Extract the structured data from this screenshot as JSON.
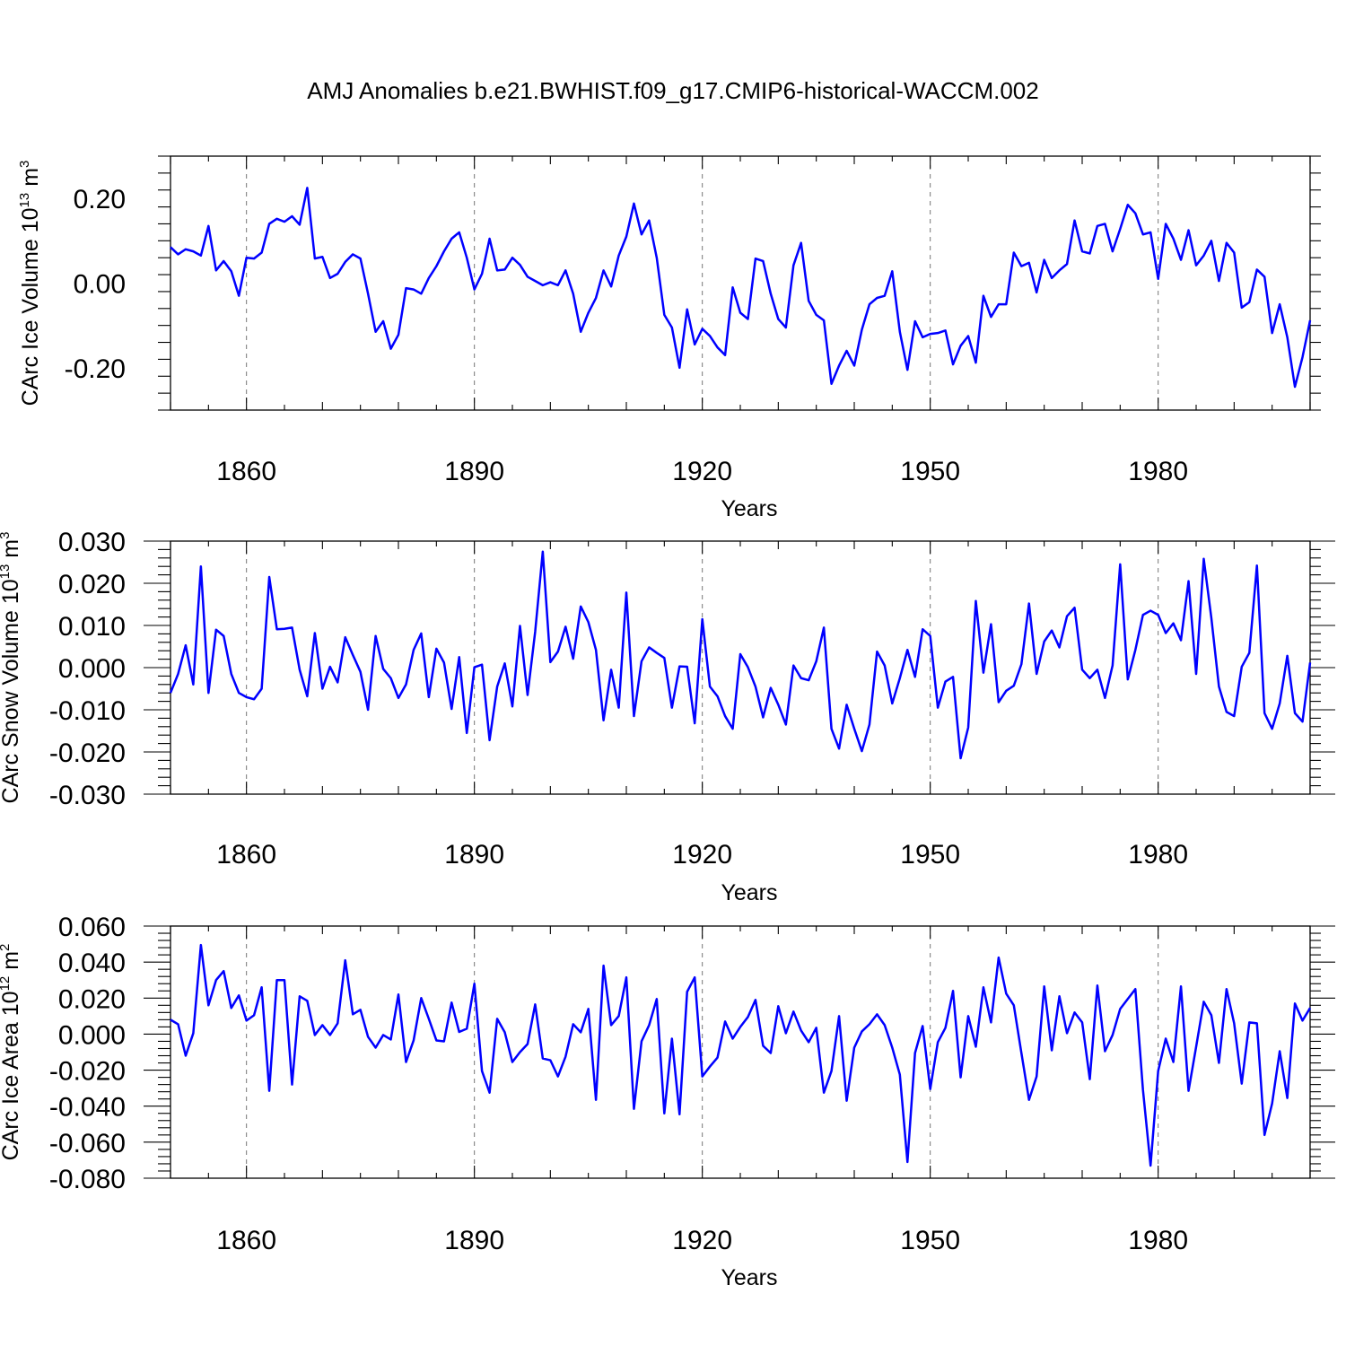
{
  "title": "AMJ Anomalies b.e21.BWHIST.f09_g17.CMIP6-historical-WACCM.002",
  "colors": {
    "line": "#0000ff",
    "axis": "#000000",
    "grid": "#777777"
  },
  "chart_data": [
    {
      "type": "line",
      "ylabel": "CArc Ice Volume 10",
      "ylabel_exp": "13",
      "ylabel_unit": " m",
      "ylabel_unit_exp": "3",
      "xlabel": "Years",
      "xlim": [
        1850,
        2000
      ],
      "ylim": [
        -0.3,
        0.3
      ],
      "xticks": [
        1860,
        1890,
        1920,
        1950,
        1980
      ],
      "xtick_labels": [
        "1860",
        "1890",
        "1920",
        "1950",
        "1980"
      ],
      "yticks": [
        0.2,
        0.0,
        -0.2
      ],
      "ytick_labels": [
        "0.20",
        "0.00",
        "-0.20"
      ],
      "grid": "vertical-dashed",
      "x_start": 1850,
      "values": [
        0.085,
        0.068,
        0.08,
        0.075,
        0.065,
        0.135,
        0.03,
        0.052,
        0.028,
        -0.03,
        0.06,
        0.058,
        0.072,
        0.14,
        0.152,
        0.145,
        0.158,
        0.138,
        0.225,
        0.058,
        0.062,
        0.012,
        0.022,
        0.05,
        0.068,
        0.058,
        -0.025,
        -0.115,
        -0.09,
        -0.155,
        -0.122,
        -0.012,
        -0.015,
        -0.025,
        0.012,
        0.04,
        0.075,
        0.105,
        0.12,
        0.06,
        -0.015,
        0.022,
        0.105,
        0.03,
        0.032,
        0.06,
        0.043,
        0.015,
        0.005,
        -0.005,
        0.002,
        -0.005,
        0.03,
        -0.025,
        -0.115,
        -0.07,
        -0.035,
        0.03,
        -0.008,
        0.065,
        0.11,
        0.188,
        0.115,
        0.148,
        0.06,
        -0.075,
        -0.105,
        -0.2,
        -0.062,
        -0.145,
        -0.108,
        -0.125,
        -0.152,
        -0.17,
        -0.01,
        -0.07,
        -0.085,
        0.058,
        0.052,
        -0.025,
        -0.085,
        -0.105,
        0.042,
        0.095,
        -0.042,
        -0.075,
        -0.088,
        -0.238,
        -0.195,
        -0.16,
        -0.195,
        -0.11,
        -0.05,
        -0.035,
        -0.03,
        0.028,
        -0.115,
        -0.205,
        -0.09,
        -0.128,
        -0.12,
        -0.118,
        -0.112,
        -0.192,
        -0.148,
        -0.125,
        -0.188,
        -0.03,
        -0.08,
        -0.05,
        -0.05,
        0.072,
        0.04,
        0.048,
        -0.022,
        0.055,
        0.012,
        0.03,
        0.045,
        0.148,
        0.075,
        0.07,
        0.135,
        0.14,
        0.075,
        0.128,
        0.185,
        0.165,
        0.115,
        0.12,
        0.01,
        0.14,
        0.105,
        0.055,
        0.125,
        0.042,
        0.065,
        0.1,
        0.005,
        0.095,
        0.072,
        -0.058,
        -0.045,
        0.032,
        0.015,
        -0.118,
        -0.05,
        -0.128,
        -0.245,
        -0.175,
        -0.088
      ]
    },
    {
      "type": "line",
      "ylabel": "CArc Snow Volume 10",
      "ylabel_exp": "13",
      "ylabel_unit": " m",
      "ylabel_unit_exp": "3",
      "xlabel": "Years",
      "xlim": [
        1850,
        2000
      ],
      "ylim": [
        -0.03,
        0.03
      ],
      "xticks": [
        1860,
        1890,
        1920,
        1950,
        1980
      ],
      "xtick_labels": [
        "1860",
        "1890",
        "1920",
        "1950",
        "1980"
      ],
      "yticks": [
        0.03,
        0.02,
        0.01,
        0.0,
        -0.01,
        -0.02,
        -0.03
      ],
      "ytick_labels": [
        "0.030",
        "0.020",
        "0.010",
        "0.000",
        "-0.010",
        "-0.020",
        "-0.030"
      ],
      "grid": "vertical-dashed",
      "x_start": 1850,
      "values": [
        -0.006,
        -0.0015,
        0.0053,
        -0.004,
        0.024,
        -0.006,
        0.009,
        0.0075,
        -0.0015,
        -0.006,
        -0.007,
        -0.0075,
        -0.005,
        0.0215,
        0.0091,
        0.0092,
        0.0095,
        -0.0005,
        -0.0068,
        0.0082,
        -0.005,
        0.0002,
        -0.0035,
        0.0072,
        0.003,
        -0.001,
        -0.01,
        0.0075,
        -0.0003,
        -0.0025,
        -0.0072,
        -0.004,
        0.0042,
        0.0081,
        -0.007,
        0.0045,
        0.0012,
        -0.0098,
        0.0025,
        -0.0155,
        0.0001,
        0.0007,
        -0.0172,
        -0.0045,
        0.001,
        -0.0092,
        0.0099,
        -0.0065,
        0.0085,
        0.0275,
        0.0013,
        0.0038,
        0.0097,
        0.0021,
        0.0145,
        0.0108,
        0.0042,
        -0.0125,
        -0.0005,
        -0.0095,
        0.0178,
        -0.0115,
        0.0015,
        0.0048,
        0.0035,
        0.0023,
        -0.0095,
        0.0003,
        0.0002,
        -0.0132,
        0.0115,
        -0.0045,
        -0.0068,
        -0.0115,
        -0.0145,
        0.0032,
        0.0001,
        -0.0045,
        -0.0118,
        -0.0048,
        -0.0088,
        -0.0135,
        0.0005,
        -0.0025,
        -0.003,
        0.0015,
        0.0095,
        -0.0145,
        -0.0192,
        -0.0088,
        -0.0145,
        -0.0198,
        -0.0135,
        0.0038,
        0.0005,
        -0.0085,
        -0.0025,
        0.0042,
        -0.0022,
        0.0091,
        0.0075,
        -0.0095,
        -0.0033,
        -0.0022,
        -0.0215,
        -0.0142,
        0.0158,
        -0.0012,
        0.0103,
        -0.0082,
        -0.0055,
        -0.0043,
        0.0008,
        0.0152,
        -0.0015,
        0.0062,
        0.0088,
        0.0048,
        0.0122,
        0.0142,
        -0.0005,
        -0.0025,
        -0.0005,
        -0.0072,
        0.0005,
        0.0245,
        -0.0028,
        0.0042,
        0.0125,
        0.0135,
        0.0125,
        0.0082,
        0.0105,
        0.0065,
        0.0205,
        -0.0015,
        0.0258,
        0.0118,
        -0.0045,
        -0.0105,
        -0.0115,
        0.0002,
        0.0035,
        0.0242,
        -0.0108,
        -0.0145,
        -0.0085,
        0.0028,
        -0.0108,
        -0.0128,
        0.0012
      ]
    },
    {
      "type": "line",
      "ylabel": "CArc Ice Area 10",
      "ylabel_exp": "12",
      "ylabel_unit": " m",
      "ylabel_unit_exp": "2",
      "xlabel": "Years",
      "xlim": [
        1850,
        2000
      ],
      "ylim": [
        -0.08,
        0.06
      ],
      "xticks": [
        1860,
        1890,
        1920,
        1950,
        1980
      ],
      "xtick_labels": [
        "1860",
        "1890",
        "1920",
        "1950",
        "1980"
      ],
      "yticks": [
        0.06,
        0.04,
        0.02,
        0.0,
        -0.02,
        -0.04,
        -0.06,
        -0.08
      ],
      "ytick_labels": [
        "0.060",
        "0.040",
        "0.020",
        "0.000",
        "-0.020",
        "-0.040",
        "-0.060",
        "-0.080"
      ],
      "grid": "vertical-dashed",
      "x_start": 1850,
      "values": [
        0.008,
        0.0055,
        -0.012,
        0.0005,
        0.0495,
        0.016,
        0.03,
        0.035,
        0.0145,
        0.0215,
        0.0075,
        0.0105,
        0.026,
        -0.0315,
        0.03,
        0.03,
        -0.028,
        0.021,
        0.0185,
        -0.0005,
        0.005,
        -0.0005,
        0.006,
        0.041,
        0.011,
        0.0135,
        -0.0015,
        -0.0075,
        -0.0005,
        -0.003,
        0.022,
        -0.0155,
        -0.0035,
        0.02,
        0.0085,
        -0.0035,
        -0.004,
        0.0175,
        0.0012,
        0.003,
        0.028,
        -0.0205,
        -0.0325,
        0.0085,
        0.001,
        -0.0155,
        -0.01,
        -0.0055,
        0.0165,
        -0.0135,
        -0.0145,
        -0.0235,
        -0.0125,
        0.0055,
        0.001,
        0.014,
        -0.0365,
        0.038,
        0.005,
        0.01,
        0.0315,
        -0.0415,
        -0.004,
        0.005,
        0.0195,
        -0.044,
        -0.0025,
        -0.0445,
        0.0235,
        0.0315,
        -0.0235,
        -0.018,
        -0.013,
        0.007,
        -0.0025,
        0.004,
        0.0095,
        0.019,
        -0.0065,
        -0.0105,
        0.0155,
        0.0005,
        0.0125,
        0.002,
        -0.0045,
        0.0035,
        -0.0325,
        -0.0205,
        0.01,
        -0.037,
        -0.0075,
        0.0015,
        0.0055,
        0.011,
        0.005,
        -0.0075,
        -0.0225,
        -0.071,
        -0.0105,
        0.0045,
        -0.0305,
        -0.0045,
        0.0035,
        0.024,
        -0.024,
        0.01,
        -0.007,
        0.026,
        0.0065,
        0.0425,
        0.0225,
        0.016,
        -0.0105,
        -0.0365,
        -0.0235,
        0.0265,
        -0.009,
        0.021,
        0.0005,
        0.012,
        0.0065,
        -0.025,
        0.027,
        -0.0095,
        -0.0005,
        0.014,
        0.0195,
        0.025,
        -0.031,
        -0.073,
        -0.0205,
        -0.0025,
        -0.0155,
        0.0265,
        -0.0315,
        -0.007,
        0.018,
        0.0105,
        -0.016,
        0.025,
        0.006,
        -0.0275,
        0.0065,
        0.006,
        -0.056,
        -0.0385,
        -0.0095,
        -0.0355,
        0.017,
        0.0075,
        0.0145
      ]
    }
  ]
}
